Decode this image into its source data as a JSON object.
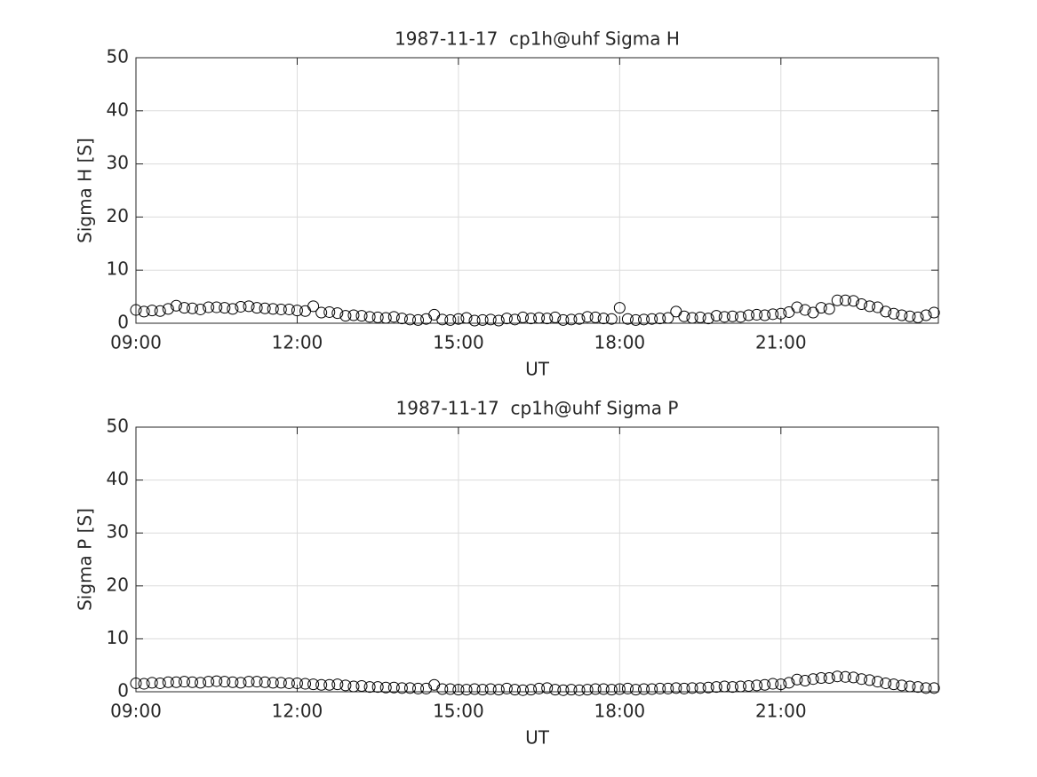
{
  "chart_data": [
    {
      "type": "scatter",
      "title": "1987-11-17  cp1h@uhf Sigma H",
      "xlabel": "UT",
      "ylabel": "Sigma H [S]",
      "color": "#000000",
      "grid": true,
      "xlim": [
        9,
        23.93
      ],
      "xticks": [
        {
          "value": 9,
          "label": "09:00"
        },
        {
          "value": 12,
          "label": "12:00"
        },
        {
          "value": 15,
          "label": "15:00"
        },
        {
          "value": 18,
          "label": "18:00"
        },
        {
          "value": 21,
          "label": "21:00"
        }
      ],
      "ylim": [
        0,
        50
      ],
      "yticks": [
        0,
        10,
        20,
        30,
        40,
        50
      ],
      "x": [
        9,
        9.15,
        9.3,
        9.45,
        9.6,
        9.75,
        9.9,
        10.05,
        10.2,
        10.35,
        10.5,
        10.65,
        10.8,
        10.95,
        11.1,
        11.25,
        11.4,
        11.55,
        11.7,
        11.85,
        12,
        12.15,
        12.3,
        12.45,
        12.6,
        12.75,
        12.9,
        13.05,
        13.2,
        13.35,
        13.5,
        13.65,
        13.8,
        13.95,
        14.1,
        14.25,
        14.4,
        14.55,
        14.7,
        14.85,
        15,
        15.15,
        15.3,
        15.45,
        15.6,
        15.75,
        15.9,
        16.05,
        16.2,
        16.35,
        16.5,
        16.65,
        16.8,
        16.95,
        17.1,
        17.25,
        17.4,
        17.55,
        17.7,
        17.85,
        18,
        18.15,
        18.3,
        18.45,
        18.6,
        18.75,
        18.9,
        19.05,
        19.2,
        19.35,
        19.5,
        19.65,
        19.8,
        19.95,
        20.1,
        20.25,
        20.4,
        20.55,
        20.7,
        20.85,
        21,
        21.15,
        21.3,
        21.45,
        21.6,
        21.75,
        21.9,
        22.05,
        22.2,
        22.35,
        22.5,
        22.65,
        22.8,
        22.95,
        23.1,
        23.25,
        23.4,
        23.55,
        23.7,
        23.85
      ],
      "values": [
        2.5,
        2.2,
        2.4,
        2.3,
        2.7,
        3.3,
        2.9,
        2.8,
        2.6,
        3.0,
        3.0,
        2.9,
        2.7,
        3.1,
        3.2,
        2.9,
        2.8,
        2.7,
        2.6,
        2.6,
        2.4,
        2.3,
        3.2,
        2.0,
        2.1,
        1.9,
        1.4,
        1.5,
        1.4,
        1.2,
        1.1,
        1.0,
        1.2,
        0.9,
        0.7,
        0.6,
        0.8,
        1.6,
        0.7,
        0.6,
        0.8,
        1.0,
        0.5,
        0.6,
        0.7,
        0.5,
        0.9,
        0.7,
        1.1,
        0.9,
        1.0,
        0.9,
        1.1,
        0.6,
        0.7,
        0.8,
        1.2,
        1.1,
        0.9,
        0.8,
        2.9,
        0.8,
        0.6,
        0.7,
        0.8,
        0.9,
        1.0,
        2.2,
        1.3,
        1.0,
        1.1,
        0.9,
        1.4,
        1.2,
        1.3,
        1.2,
        1.5,
        1.6,
        1.5,
        1.7,
        1.8,
        2.1,
        3.0,
        2.5,
        2.0,
        2.9,
        2.7,
        4.3,
        4.3,
        4.2,
        3.6,
        3.2,
        3.0,
        2.2,
        1.8,
        1.5,
        1.3,
        1.1,
        1.5,
        2.0
      ]
    },
    {
      "type": "scatter",
      "title": "1987-11-17  cp1h@uhf Sigma P",
      "xlabel": "UT",
      "ylabel": "Sigma P [S]",
      "color": "#000000",
      "grid": true,
      "xlim": [
        9,
        23.93
      ],
      "xticks": [
        {
          "value": 9,
          "label": "09:00"
        },
        {
          "value": 12,
          "label": "12:00"
        },
        {
          "value": 15,
          "label": "15:00"
        },
        {
          "value": 18,
          "label": "18:00"
        },
        {
          "value": 21,
          "label": "21:00"
        }
      ],
      "ylim": [
        0,
        50
      ],
      "yticks": [
        0,
        10,
        20,
        30,
        40,
        50
      ],
      "x": [
        9,
        9.15,
        9.3,
        9.45,
        9.6,
        9.75,
        9.9,
        10.05,
        10.2,
        10.35,
        10.5,
        10.65,
        10.8,
        10.95,
        11.1,
        11.25,
        11.4,
        11.55,
        11.7,
        11.85,
        12,
        12.15,
        12.3,
        12.45,
        12.6,
        12.75,
        12.9,
        13.05,
        13.2,
        13.35,
        13.5,
        13.65,
        13.8,
        13.95,
        14.1,
        14.25,
        14.4,
        14.55,
        14.7,
        14.85,
        15,
        15.15,
        15.3,
        15.45,
        15.6,
        15.75,
        15.9,
        16.05,
        16.2,
        16.35,
        16.5,
        16.65,
        16.8,
        16.95,
        17.1,
        17.25,
        17.4,
        17.55,
        17.7,
        17.85,
        18,
        18.15,
        18.3,
        18.45,
        18.6,
        18.75,
        18.9,
        19.05,
        19.2,
        19.35,
        19.5,
        19.65,
        19.8,
        19.95,
        20.1,
        20.25,
        20.4,
        20.55,
        20.7,
        20.85,
        21,
        21.15,
        21.3,
        21.45,
        21.6,
        21.75,
        21.9,
        22.05,
        22.2,
        22.35,
        22.5,
        22.65,
        22.8,
        22.95,
        23.1,
        23.25,
        23.4,
        23.55,
        23.7,
        23.85
      ],
      "values": [
        1.6,
        1.5,
        1.7,
        1.6,
        1.8,
        1.8,
        1.9,
        1.8,
        1.7,
        1.9,
        2.0,
        1.9,
        1.8,
        1.7,
        1.9,
        1.9,
        1.8,
        1.7,
        1.7,
        1.6,
        1.6,
        1.5,
        1.4,
        1.3,
        1.3,
        1.4,
        1.2,
        1.0,
        1.1,
        0.9,
        0.9,
        0.8,
        0.8,
        0.7,
        0.7,
        0.6,
        0.6,
        1.3,
        0.5,
        0.5,
        0.4,
        0.4,
        0.5,
        0.4,
        0.5,
        0.4,
        0.6,
        0.4,
        0.3,
        0.4,
        0.6,
        0.7,
        0.4,
        0.3,
        0.4,
        0.3,
        0.4,
        0.5,
        0.5,
        0.4,
        0.5,
        0.6,
        0.4,
        0.5,
        0.5,
        0.6,
        0.6,
        0.7,
        0.6,
        0.7,
        0.7,
        0.8,
        0.9,
        1.0,
        0.9,
        1.0,
        1.1,
        1.2,
        1.3,
        1.5,
        1.4,
        1.7,
        2.3,
        2.1,
        2.4,
        2.6,
        2.6,
        2.9,
        2.8,
        2.7,
        2.4,
        2.2,
        1.9,
        1.6,
        1.4,
        1.2,
        1.0,
        0.9,
        0.7,
        0.7
      ]
    }
  ]
}
